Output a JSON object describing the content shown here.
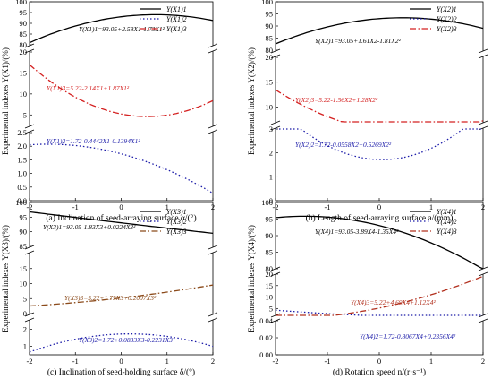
{
  "chart_data": [
    {
      "type": "line",
      "ylabel": "Experimental indexes Y(X1)/(%)",
      "xlabel": "(a) Inclination of seed-arraying surface α/(°)",
      "xlim": [
        -2,
        2
      ],
      "xticks": [
        "-2",
        "-1",
        "0",
        "1",
        "2"
      ],
      "upper_yticks": [
        "80",
        "85",
        "90",
        "95",
        "100"
      ],
      "mid_yticks": [
        "5",
        "10",
        "15",
        "20"
      ],
      "lower_yticks": [
        "0.0",
        "0.5",
        "1.0",
        "1.5",
        "2.0",
        "2.5"
      ],
      "legend": [
        "Y(X1)1",
        "Y(X1)2",
        "Y(X1)3"
      ],
      "legend_placement": "right",
      "series": [
        {
          "name": "Y(X1)1",
          "style": "solid",
          "color": "#000000",
          "equation": "Y(X1)1=93.05+2.58X1-1.73X1²",
          "coef": [
            93.05,
            2.58,
            -1.73
          ]
        },
        {
          "name": "Y(X1)2",
          "style": "dotted",
          "color": "#1a1aa8",
          "equation": "Y(X1)2=1.72-0.4442X1-0.1394X1²",
          "coef": [
            1.72,
            -0.4442,
            -0.1394
          ]
        },
        {
          "name": "Y(X1)3",
          "style": "dashdot",
          "color": "#d42020",
          "equation": "Y(X1)3=5.22-2.14X1+1.87X1²",
          "coef": [
            5.22,
            -2.14,
            1.87
          ]
        }
      ]
    },
    {
      "type": "line",
      "ylabel": "Experimental indexes Y(X2)/(%)",
      "xlabel": "(b) Length of seed-arraying surface a/(mm)",
      "xlim": [
        -2,
        2
      ],
      "xticks": [
        "-2",
        "-1",
        "0",
        "1",
        "2"
      ],
      "upper_yticks": [
        "80",
        "85",
        "90",
        "95",
        "100"
      ],
      "mid_yticks": [
        "10",
        "15",
        "20"
      ],
      "lower_yticks": [
        "0",
        "1",
        "2",
        "3"
      ],
      "legend": [
        "Y(X2)1",
        "Y(X2)2",
        "Y(X2)3"
      ],
      "legend_placement": "right",
      "series": [
        {
          "name": "Y(X2)1",
          "style": "solid",
          "color": "#000000",
          "equation": "Y(X2)1=93.05+1.61X2-1.81X2²",
          "coef": [
            93.05,
            1.61,
            -1.81
          ]
        },
        {
          "name": "Y(X2)2",
          "style": "dotted",
          "color": "#1a1aa8",
          "equation": "Y(X2)2=1.72-0.0558X2+0.5269X2²",
          "coef": [
            1.72,
            -0.0558,
            0.5269
          ]
        },
        {
          "name": "Y(X2)3",
          "style": "dashdot",
          "color": "#d42020",
          "equation": "Y(X2)3=5.22-1.56X2+1.28X2²",
          "coef": [
            5.22,
            -1.56,
            1.28
          ]
        }
      ]
    },
    {
      "type": "line",
      "ylabel": "Experimental indexes Y(X3)/(%)",
      "xlabel": "(c) Inclination of seed-holding surface δ/(°)",
      "xlim": [
        -2,
        2
      ],
      "xticks": [
        "-2",
        "-1",
        "0",
        "1",
        "2"
      ],
      "upper_yticks": [
        "85",
        "90",
        "95",
        "100"
      ],
      "mid_yticks": [
        "0",
        "5",
        "10",
        "15"
      ],
      "lower_yticks": [
        "1",
        "2"
      ],
      "legend": [
        "Y(X3)1",
        "Y(X3)2",
        "Y(X3)3"
      ],
      "legend_placement": "right",
      "series": [
        {
          "name": "Y(X3)1",
          "style": "solid",
          "color": "#000000",
          "equation": "Y(X3)1=93.05-1.83X3+0.0224X3²",
          "coef": [
            93.05,
            -1.83,
            0.0224
          ]
        },
        {
          "name": "Y(X3)2",
          "style": "dotted",
          "color": "#1a1aa8",
          "equation": "Y(X3)2=1.72+0.0833X3-0.2231X3²",
          "coef": [
            1.72,
            0.0833,
            -0.2231
          ]
        },
        {
          "name": "Y(X3)3",
          "style": "dashdot",
          "color": "#8b4a1a",
          "equation": "Y(X3)3=5.22+1.75X3+0.2007X3²",
          "coef": [
            5.22,
            1.75,
            0.2007
          ]
        }
      ]
    },
    {
      "type": "line",
      "ylabel": "Experimental indexes Y(X4)/(%)",
      "xlabel": "(d) Rotation speed n/(r·s⁻¹)",
      "xlim": [
        -2,
        2
      ],
      "xticks": [
        "-2",
        "-1",
        "0",
        "1",
        "2"
      ],
      "upper_yticks": [
        "80",
        "85",
        "90",
        "95",
        "100"
      ],
      "mid_yticks": [
        "5",
        "10",
        "15",
        "20"
      ],
      "lower_yticks": [
        "0.00",
        "0.02",
        "0.04"
      ],
      "legend": [
        "Y(X4)1",
        "Y(X4)2",
        "Y(X4)3"
      ],
      "legend_placement": "right",
      "series": [
        {
          "name": "Y(X4)1",
          "style": "solid",
          "color": "#000000",
          "equation": "Y(X4)1=93.05-3.89X4-1.35X4²",
          "coef": [
            93.05,
            -3.89,
            -1.35
          ]
        },
        {
          "name": "Y(X4)2",
          "style": "dotted",
          "color": "#1a1aa8",
          "equation": "Y(X4)2=1.72-0.8067X4+0.2356X4²",
          "coef": [
            1.72,
            -0.8067,
            0.2356
          ]
        },
        {
          "name": "Y(X4)3",
          "style": "dashdot",
          "color": "#b2301e",
          "equation": "Y(X4)3=5.22+4.69X4+1.12X4²",
          "coef": [
            5.22,
            4.69,
            1.12
          ]
        }
      ]
    }
  ]
}
